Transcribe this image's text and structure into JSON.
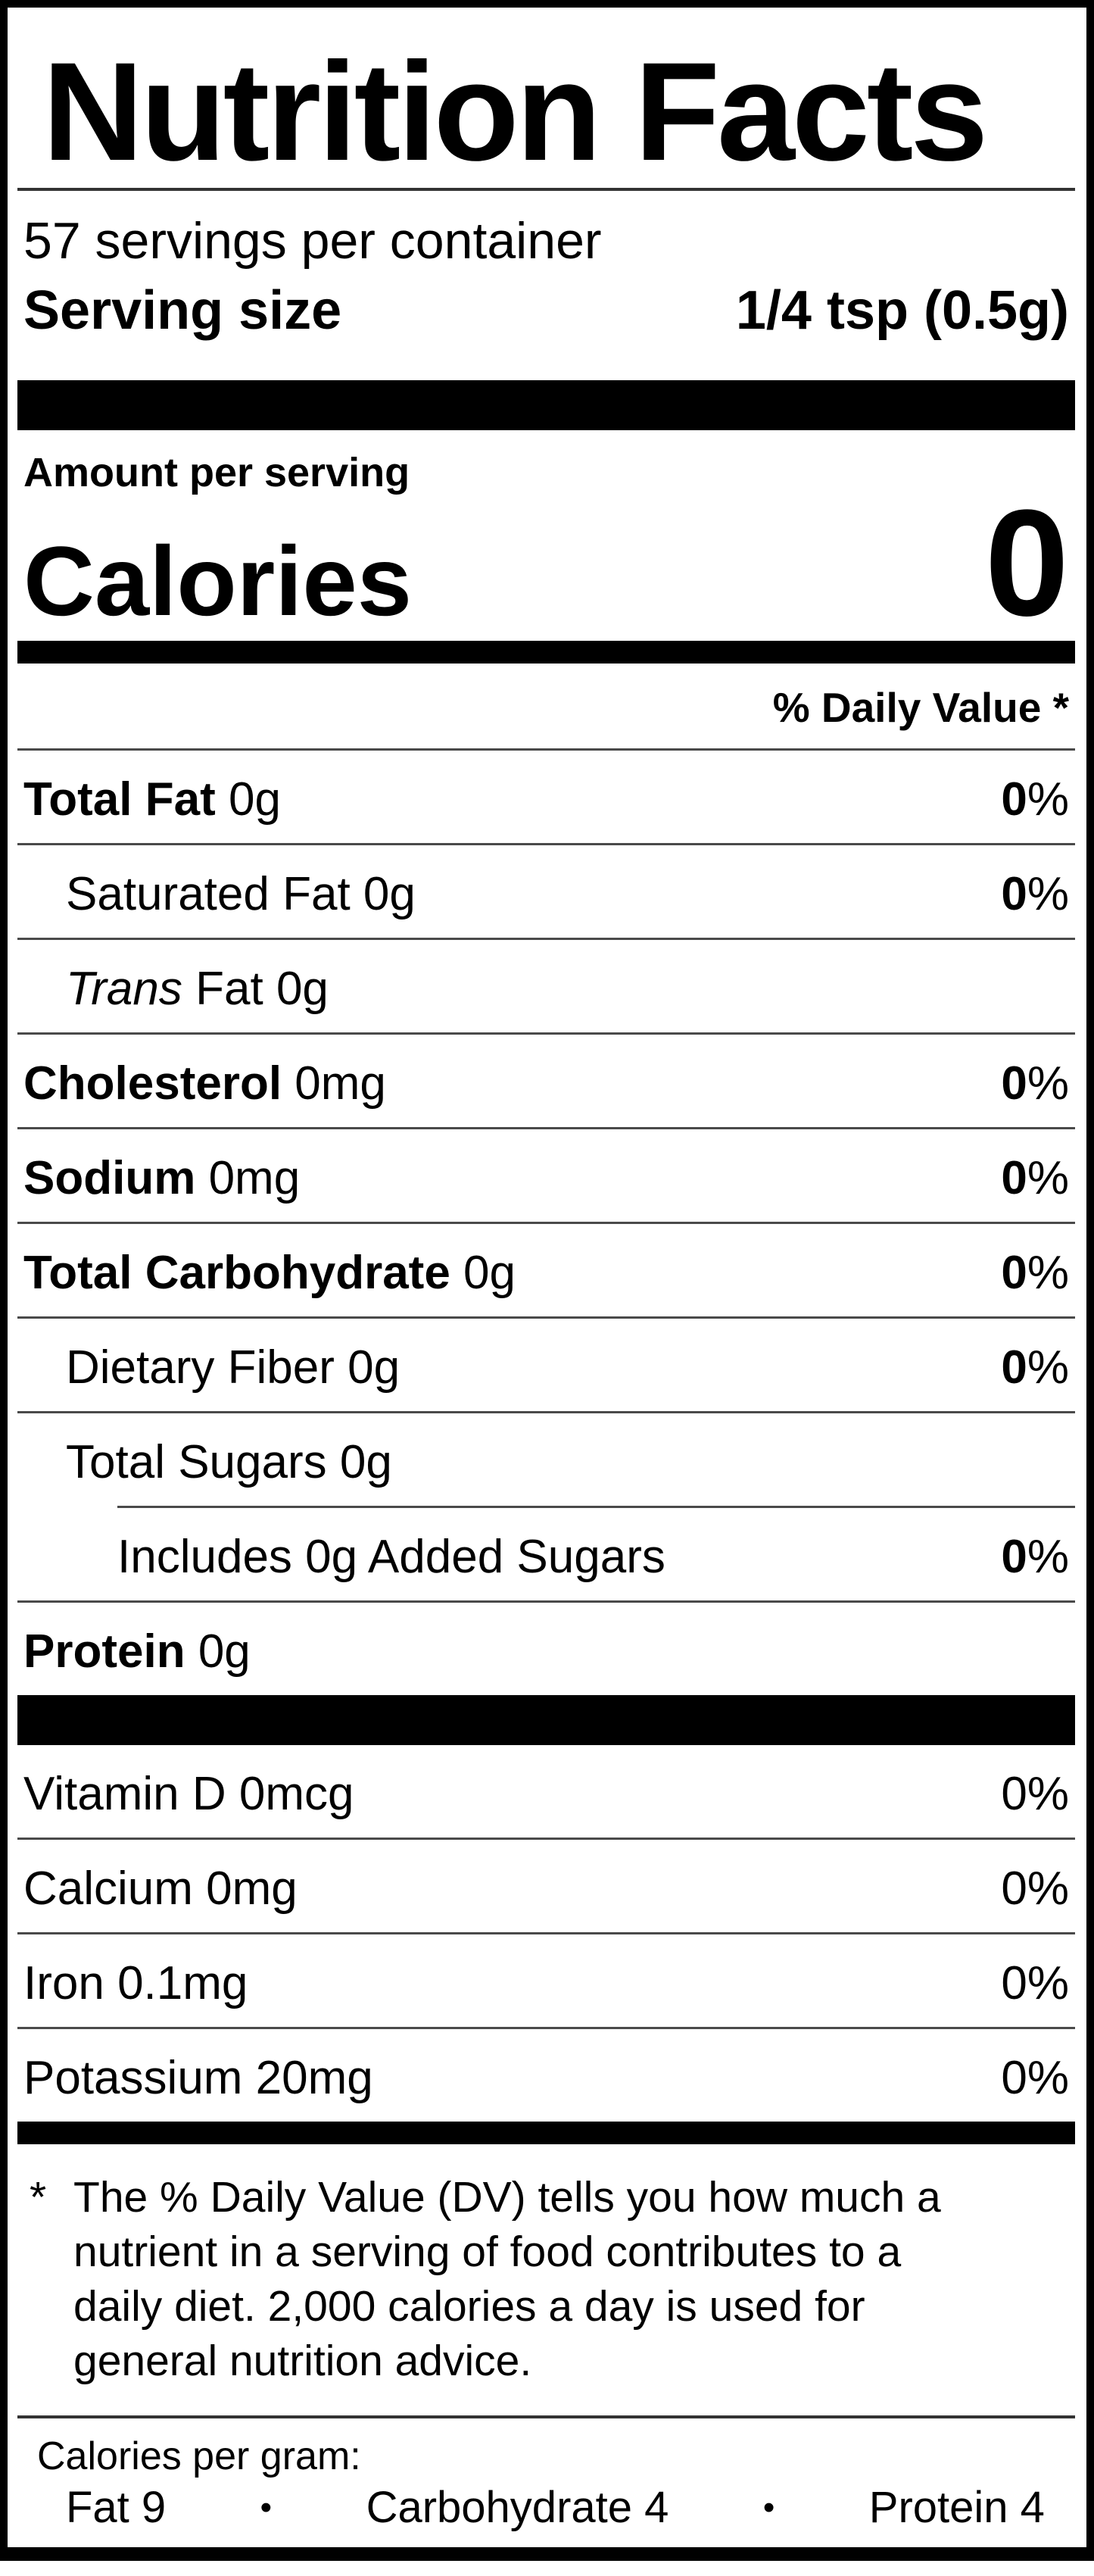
{
  "label": {
    "title": "Nutrition Facts",
    "servings_per_container": "57 servings per container",
    "serving_size": {
      "label": "Serving size",
      "value": "1/4 tsp (0.5g)"
    },
    "amount_per_serving": "Amount per serving",
    "calories": {
      "label": "Calories",
      "value": "0"
    },
    "daily_value_header": "% Daily Value *",
    "nutrients": [
      {
        "name": "Total Fat",
        "amount": "0g",
        "dv_num": "0",
        "dv_pct": "%",
        "bold": true,
        "indent": 0,
        "sep": "full"
      },
      {
        "name": "Saturated Fat",
        "amount": "0g",
        "dv_num": "0",
        "dv_pct": "%",
        "bold": false,
        "indent": 1,
        "sep": "full"
      },
      {
        "name_italic": "Trans",
        "name": "Fat",
        "amount": "0g",
        "dv_num": "",
        "dv_pct": "",
        "bold": false,
        "indent": 1,
        "sep": "full"
      },
      {
        "name": "Cholesterol",
        "amount": "0mg",
        "dv_num": "0",
        "dv_pct": "%",
        "bold": true,
        "indent": 0,
        "sep": "full"
      },
      {
        "name": "Sodium",
        "amount": "0mg",
        "dv_num": "0",
        "dv_pct": "%",
        "bold": true,
        "indent": 0,
        "sep": "full"
      },
      {
        "name": "Total Carbohydrate",
        "amount": "0g",
        "dv_num": "0",
        "dv_pct": "%",
        "bold": true,
        "indent": 0,
        "sep": "full"
      },
      {
        "name": "Dietary Fiber",
        "amount": "0g",
        "dv_num": "0",
        "dv_pct": "%",
        "bold": false,
        "indent": 1,
        "sep": "full"
      },
      {
        "name": "Total Sugars",
        "amount": "0g",
        "dv_num": "",
        "dv_pct": "",
        "bold": false,
        "indent": 1,
        "sep": "indent2"
      },
      {
        "name": "Includes 0g Added Sugars",
        "amount": "",
        "dv_num": "0",
        "dv_pct": "%",
        "bold": false,
        "indent": 2,
        "sep": "full"
      },
      {
        "name": "Protein",
        "amount": "0g",
        "dv_num": "",
        "dv_pct": "",
        "bold": true,
        "indent": 0,
        "sep": "none"
      }
    ],
    "vitamins": [
      {
        "name": "Vitamin D",
        "amount": "0mcg",
        "dv": "0%",
        "sep": "full"
      },
      {
        "name": "Calcium",
        "amount": "0mg",
        "dv": "0%",
        "sep": "full"
      },
      {
        "name": "Iron",
        "amount": "0.1mg",
        "dv": "0%",
        "sep": "full"
      },
      {
        "name": "Potassium",
        "amount": "20mg",
        "dv": "0%",
        "sep": "none"
      }
    ],
    "footnote": {
      "marker": "*",
      "lines": [
        "The % Daily Value (DV) tells you how much a",
        "nutrient in a serving of food contributes to a",
        "daily diet. 2,000 calories a day is used for",
        "general nutrition advice."
      ]
    },
    "calories_per_gram": {
      "heading": "Calories per gram:",
      "bullet": "•",
      "items": [
        "Fat 9",
        "Carbohydrate 4",
        "Protein 4"
      ]
    }
  }
}
